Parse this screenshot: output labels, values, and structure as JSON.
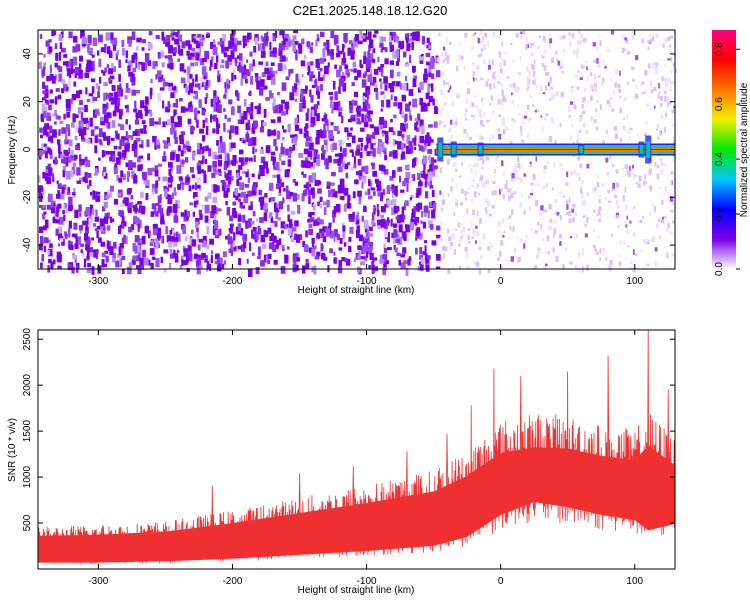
{
  "page": {
    "title": "C2E1.2025.148.18.12.G20"
  },
  "chart_data": [
    {
      "type": "heatmap",
      "title": "C2E1.2025.148.18.12.G20",
      "xlabel": "Height of straight line (km)",
      "ylabel": "Frequency (Hz)",
      "xlim": [
        -345,
        130
      ],
      "ylim": [
        -50,
        50
      ],
      "x_ticks": [
        -300,
        -200,
        -100,
        0,
        100
      ],
      "y_ticks": [
        -40,
        -20,
        0,
        20,
        40
      ],
      "colorbar": {
        "label": "Normalized spectral amplitude",
        "range": [
          0,
          0.87
        ],
        "ticks": [
          0,
          0.2,
          0.4,
          0.6,
          0.8
        ],
        "colormap": [
          "#ffffff",
          "#7a00e8",
          "#0000ff",
          "#00c8ff",
          "#00e800",
          "#f0f000",
          "#ff7800",
          "#ff0000",
          "#ff0080"
        ]
      },
      "signal": {
        "frequency_hz": 0,
        "start_height_km": -48,
        "end_height_km": 130
      },
      "noise_region": {
        "dense_until_km": -48,
        "sparse_from_km": -48
      }
    },
    {
      "type": "line",
      "title": "",
      "xlabel": "Height of straight line (km)",
      "ylabel": "SNR (10 * v/v)",
      "xlim": [
        -345,
        130
      ],
      "ylim": [
        0,
        2600
      ],
      "x_ticks": [
        -300,
        -200,
        -100,
        0,
        100
      ],
      "y_ticks": [
        500,
        1000,
        1500,
        2000,
        2500
      ],
      "color": "#f03030",
      "envelope": {
        "x": [
          -345,
          -300,
          -250,
          -200,
          -150,
          -100,
          -50,
          -25,
          0,
          25,
          50,
          75,
          100,
          110,
          130
        ],
        "upper": [
          460,
          480,
          520,
          640,
          780,
          920,
          1080,
          1300,
          1620,
          1700,
          1680,
          1580,
          1520,
          1720,
          1450
        ],
        "lower": [
          50,
          50,
          60,
          80,
          110,
          140,
          180,
          250,
          420,
          520,
          480,
          420,
          380,
          300,
          350
        ],
        "peaks": [
          {
            "x": -215,
            "y": 900
          },
          {
            "x": -150,
            "y": 1040
          },
          {
            "x": -110,
            "y": 1120
          },
          {
            "x": -70,
            "y": 1280
          },
          {
            "x": -40,
            "y": 1470
          },
          {
            "x": -22,
            "y": 1780
          },
          {
            "x": -5,
            "y": 2180
          },
          {
            "x": 15,
            "y": 2100
          },
          {
            "x": 50,
            "y": 2150
          },
          {
            "x": 80,
            "y": 2320
          },
          {
            "x": 110,
            "y": 2600
          },
          {
            "x": 125,
            "y": 1950
          }
        ]
      }
    }
  ]
}
